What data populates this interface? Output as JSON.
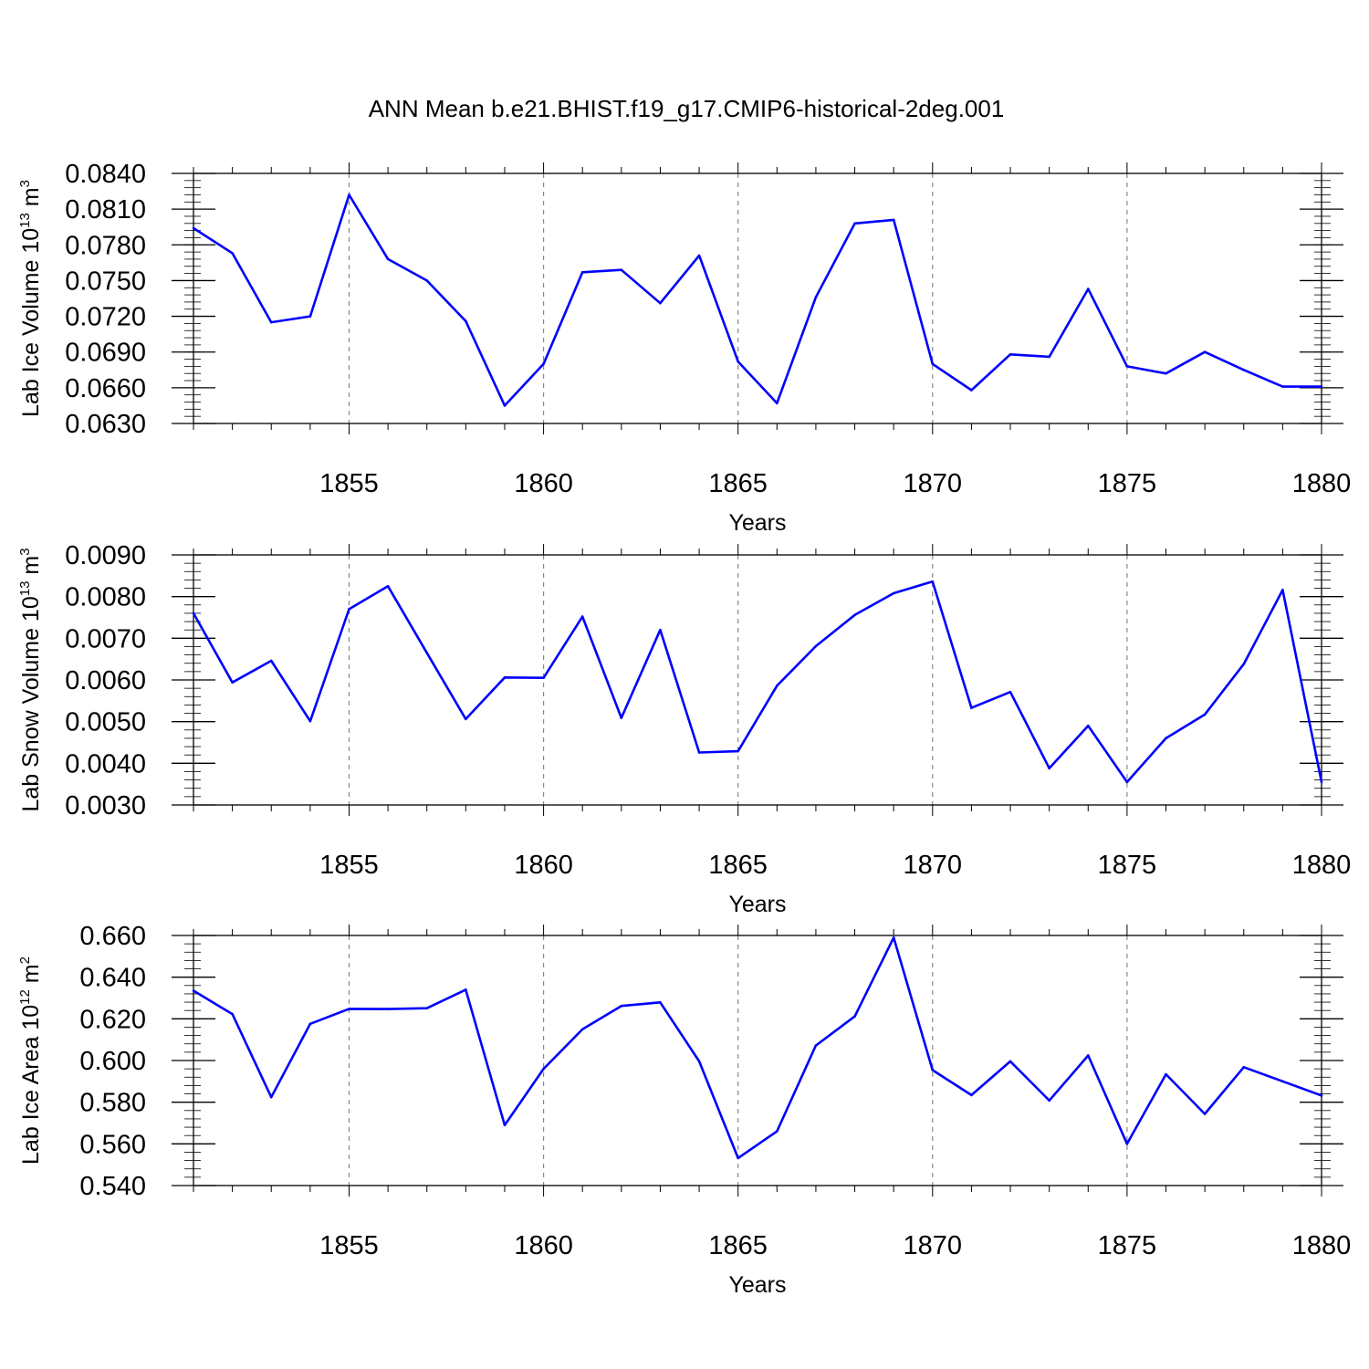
{
  "title": "ANN Mean b.e21.BHIST.f19_g17.CMIP6-historical-2deg.001",
  "series_color": "#0000ff",
  "chart_data": [
    {
      "type": "line",
      "ylabel": {
        "prefix": "Lab Ice Volume 10",
        "exp": "13",
        "unit": " m",
        "unit_exp": "3"
      },
      "xlabel": "Years",
      "xlim": [
        1851,
        1880
      ],
      "ylim": [
        0.063,
        0.084
      ],
      "ymajor": [
        0.063,
        0.066,
        0.069,
        0.072,
        0.075,
        0.078,
        0.081,
        0.084
      ],
      "ytick_labels": [
        "0.0630",
        "0.0660",
        "0.0690",
        "0.0720",
        "0.0750",
        "0.0780",
        "0.0810",
        "0.0840"
      ],
      "yminor_step": 0.0006,
      "xmajor": [
        1855,
        1860,
        1865,
        1870,
        1875,
        1880
      ],
      "xtick_labels": [
        "1855",
        "1860",
        "1865",
        "1870",
        "1875",
        "1880"
      ],
      "grid": "x-major-dashed",
      "x": [
        1851,
        1852,
        1853,
        1854,
        1855,
        1856,
        1857,
        1858,
        1859,
        1860,
        1861,
        1862,
        1863,
        1864,
        1865,
        1866,
        1867,
        1868,
        1869,
        1870,
        1871,
        1872,
        1873,
        1874,
        1875,
        1876,
        1877,
        1878,
        1879,
        1880
      ],
      "values": [
        0.0794,
        0.0773,
        0.0715,
        0.072,
        0.0822,
        0.0768,
        0.075,
        0.0716,
        0.0645,
        0.068,
        0.0757,
        0.0759,
        0.0731,
        0.0771,
        0.0682,
        0.0647,
        0.0736,
        0.0798,
        0.0801,
        0.068,
        0.0658,
        0.0688,
        0.0686,
        0.0743,
        0.0678,
        0.0672,
        0.069,
        0.0675,
        0.0661,
        0.0661
      ]
    },
    {
      "type": "line",
      "ylabel": {
        "prefix": "Lab Snow Volume 10",
        "exp": "13",
        "unit": " m",
        "unit_exp": "3"
      },
      "xlabel": "Years",
      "xlim": [
        1851,
        1880
      ],
      "ylim": [
        0.003,
        0.009
      ],
      "ymajor": [
        0.003,
        0.004,
        0.005,
        0.006,
        0.007,
        0.008,
        0.009
      ],
      "ytick_labels": [
        "0.0030",
        "0.0040",
        "0.0050",
        "0.0060",
        "0.0070",
        "0.0080",
        "0.0090"
      ],
      "yminor_step": 0.0002,
      "xmajor": [
        1855,
        1860,
        1865,
        1870,
        1875,
        1880
      ],
      "xtick_labels": [
        "1855",
        "1860",
        "1865",
        "1870",
        "1875",
        "1880"
      ],
      "grid": "x-major-dashed",
      "x": [
        1851,
        1852,
        1853,
        1854,
        1855,
        1856,
        1857,
        1858,
        1859,
        1860,
        1861,
        1862,
        1863,
        1864,
        1865,
        1866,
        1867,
        1868,
        1869,
        1870,
        1871,
        1872,
        1873,
        1874,
        1875,
        1876,
        1877,
        1878,
        1879,
        1880
      ],
      "values": [
        0.0076,
        0.00594,
        0.00646,
        0.00501,
        0.0077,
        0.00825,
        0.00665,
        0.00506,
        0.00606,
        0.00605,
        0.00752,
        0.00509,
        0.0072,
        0.00426,
        0.00429,
        0.00586,
        0.00681,
        0.00756,
        0.00808,
        0.00836,
        0.00533,
        0.00571,
        0.00388,
        0.0049,
        0.00355,
        0.0046,
        0.00517,
        0.00638,
        0.00816,
        0.00355
      ]
    },
    {
      "type": "line",
      "ylabel": {
        "prefix": "Lab Ice Area 10",
        "exp": "12",
        "unit": " m",
        "unit_exp": "2"
      },
      "xlabel": "Years",
      "xlim": [
        1851,
        1880
      ],
      "ylim": [
        0.54,
        0.66
      ],
      "ymajor": [
        0.54,
        0.56,
        0.58,
        0.6,
        0.62,
        0.64,
        0.66
      ],
      "ytick_labels": [
        "0.540",
        "0.560",
        "0.580",
        "0.600",
        "0.620",
        "0.640",
        "0.660"
      ],
      "yminor_step": 0.004,
      "xmajor": [
        1855,
        1860,
        1865,
        1870,
        1875,
        1880
      ],
      "xtick_labels": [
        "1855",
        "1860",
        "1865",
        "1870",
        "1875",
        "1880"
      ],
      "grid": "x-major-dashed",
      "x": [
        1851,
        1852,
        1853,
        1854,
        1855,
        1856,
        1857,
        1858,
        1859,
        1860,
        1861,
        1862,
        1863,
        1864,
        1865,
        1866,
        1867,
        1868,
        1869,
        1870,
        1871,
        1872,
        1873,
        1874,
        1875,
        1876,
        1877,
        1878,
        1879,
        1880
      ],
      "values": [
        0.6335,
        0.6223,
        0.5824,
        0.6176,
        0.6248,
        0.6247,
        0.6251,
        0.634,
        0.569,
        0.596,
        0.615,
        0.6262,
        0.6279,
        0.5996,
        0.5532,
        0.566,
        0.6072,
        0.6212,
        0.659,
        0.5954,
        0.5834,
        0.5996,
        0.5808,
        0.6024,
        0.56,
        0.5934,
        0.5744,
        0.5968,
        0.59,
        0.5832
      ]
    }
  ]
}
